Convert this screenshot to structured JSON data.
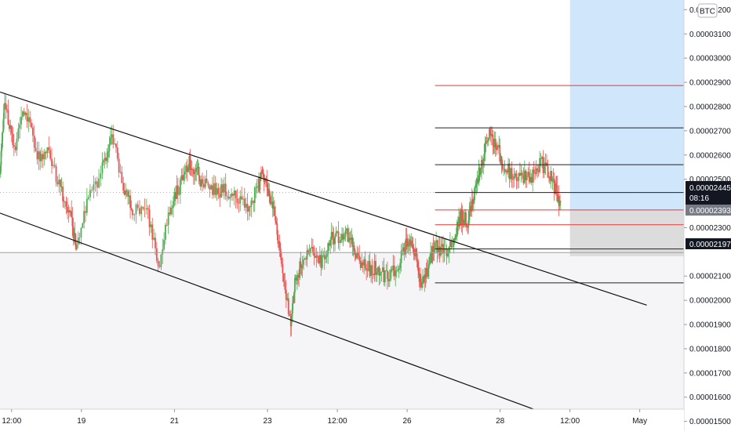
{
  "chart_data": {
    "type": "candlestick",
    "currency_badge": "BTC",
    "y_axis": {
      "ticks": [
        "0.00003200",
        "0.00003100",
        "0.00003000",
        "0.00002900",
        "0.00002800",
        "0.00002700",
        "0.00002600",
        "0.00002500",
        "0.00002300",
        "0.00002100",
        "0.00002000",
        "0.00001900",
        "0.00001800",
        "0.00001700",
        "0.00001600",
        "0.00001500"
      ],
      "range": [
        1.46e-05,
        3.24e-05
      ]
    },
    "x_axis": {
      "ticks": [
        "12:00",
        "19",
        "21",
        "23",
        "12:00",
        "26",
        "28",
        "12:00",
        "May"
      ],
      "range_days": [
        17.25,
        31.95
      ]
    },
    "price_labels": {
      "last": "0.00002445",
      "countdown": "08:16",
      "level_a": "0.00002393",
      "level_b": "0.00002197"
    },
    "candles_anchors": [
      [
        17.25,
        2.52e-05
      ],
      [
        17.35,
        2.84e-05
      ],
      [
        17.55,
        2.62e-05
      ],
      [
        17.8,
        2.79e-05
      ],
      [
        18.05,
        2.6e-05
      ],
      [
        18.3,
        2.62e-05
      ],
      [
        18.55,
        2.45e-05
      ],
      [
        18.75,
        2.36e-05
      ],
      [
        18.9,
        2.2e-05
      ],
      [
        19.15,
        2.42e-05
      ],
      [
        19.45,
        2.54e-05
      ],
      [
        19.65,
        2.67e-05
      ],
      [
        19.9,
        2.48e-05
      ],
      [
        20.1,
        2.36e-05
      ],
      [
        20.4,
        2.4e-05
      ],
      [
        20.65,
        2.13e-05
      ],
      [
        20.9,
        2.38e-05
      ],
      [
        21.1,
        2.47e-05
      ],
      [
        21.3,
        2.57e-05
      ],
      [
        21.45,
        2.54e-05
      ],
      [
        21.6,
        2.49e-05
      ],
      [
        21.85,
        2.46e-05
      ],
      [
        22.1,
        2.45e-05
      ],
      [
        22.35,
        2.43e-05
      ],
      [
        22.6,
        2.37e-05
      ],
      [
        22.8,
        2.47e-05
      ],
      [
        22.9,
        2.53e-05
      ],
      [
        23.0,
        2.45e-05
      ],
      [
        23.15,
        2.38e-05
      ],
      [
        23.3,
        2.13e-05
      ],
      [
        23.5,
        1.89e-05
      ],
      [
        23.6,
        2.1e-05
      ],
      [
        23.75,
        2.15e-05
      ],
      [
        23.95,
        2.21e-05
      ],
      [
        24.15,
        2.16e-05
      ],
      [
        24.35,
        2.25e-05
      ],
      [
        24.55,
        2.26e-05
      ],
      [
        24.75,
        2.27e-05
      ],
      [
        24.9,
        2.19e-05
      ],
      [
        25.1,
        2.13e-05
      ],
      [
        25.3,
        2.13e-05
      ],
      [
        25.5,
        2.1e-05
      ],
      [
        25.7,
        2.12e-05
      ],
      [
        25.9,
        2.19e-05
      ],
      [
        26.05,
        2.26e-05
      ],
      [
        26.2,
        2.18e-05
      ],
      [
        26.3,
        2.05e-05
      ],
      [
        26.45,
        2.12e-05
      ],
      [
        26.6,
        2.24e-05
      ],
      [
        26.8,
        2.19e-05
      ],
      [
        27.0,
        2.25e-05
      ],
      [
        27.15,
        2.35e-05
      ],
      [
        27.3,
        2.32e-05
      ],
      [
        27.45,
        2.46e-05
      ],
      [
        27.6,
        2.55e-05
      ],
      [
        27.75,
        2.69e-05
      ],
      [
        27.9,
        2.65e-05
      ],
      [
        28.05,
        2.57e-05
      ],
      [
        28.25,
        2.51e-05
      ],
      [
        28.45,
        2.51e-05
      ],
      [
        28.65,
        2.5e-05
      ],
      [
        28.85,
        2.57e-05
      ],
      [
        29.05,
        2.53e-05
      ],
      [
        29.2,
        2.45e-05
      ],
      [
        29.3,
        2.4e-05
      ]
    ],
    "horizontal_levels": [
      {
        "start_day": 26.6,
        "price": 2.887e-05,
        "kind": "red"
      },
      {
        "start_day": 26.6,
        "price": 2.712e-05,
        "kind": "dark"
      },
      {
        "start_day": 26.6,
        "price": 2.56e-05,
        "kind": "dark"
      },
      {
        "start_day": 26.6,
        "price": 2.445e-05,
        "kind": "dark"
      },
      {
        "start_day": 26.6,
        "price": 2.373e-05,
        "kind": "red"
      },
      {
        "start_day": 26.6,
        "price": 2.312e-05,
        "kind": "red"
      },
      {
        "start_day": 26.6,
        "price": 2.212e-05,
        "kind": "dark"
      },
      {
        "start_day": 26.6,
        "price": 2.072e-05,
        "kind": "dark"
      }
    ],
    "full_width_levels": [
      2.197e-05,
      1.505e-05
    ],
    "trendlines": [
      {
        "from": [
          17.25,
          2.86e-05
        ],
        "to": [
          31.15,
          1.98e-05
        ]
      },
      {
        "from": [
          17.25,
          2.36e-05
        ],
        "to": [
          30.0,
          1.46e-05
        ]
      }
    ],
    "zones": {
      "target": {
        "from_day": 29.5,
        "to_day": 31.95,
        "top": 3.24e-05,
        "bottom": 2.373e-05,
        "color": "#cfe6fb"
      },
      "stop": {
        "from_day": 29.5,
        "to_day": 31.95,
        "top": 2.373e-05,
        "bottom": 2.182e-05,
        "color": "#dcdcdc"
      },
      "support": {
        "from_day": 17.25,
        "to_day": 31.95,
        "top": 2.197e-05,
        "bottom": 1.505e-05,
        "color": "#f5f4f7"
      }
    },
    "colors": {
      "up": "#4caf50",
      "down": "#ef5350",
      "red_level": "#e53935",
      "dark_level": "#222222",
      "axis_text": "#131722",
      "badge_dark": "#131722",
      "badge_gray": "#787b86"
    }
  }
}
